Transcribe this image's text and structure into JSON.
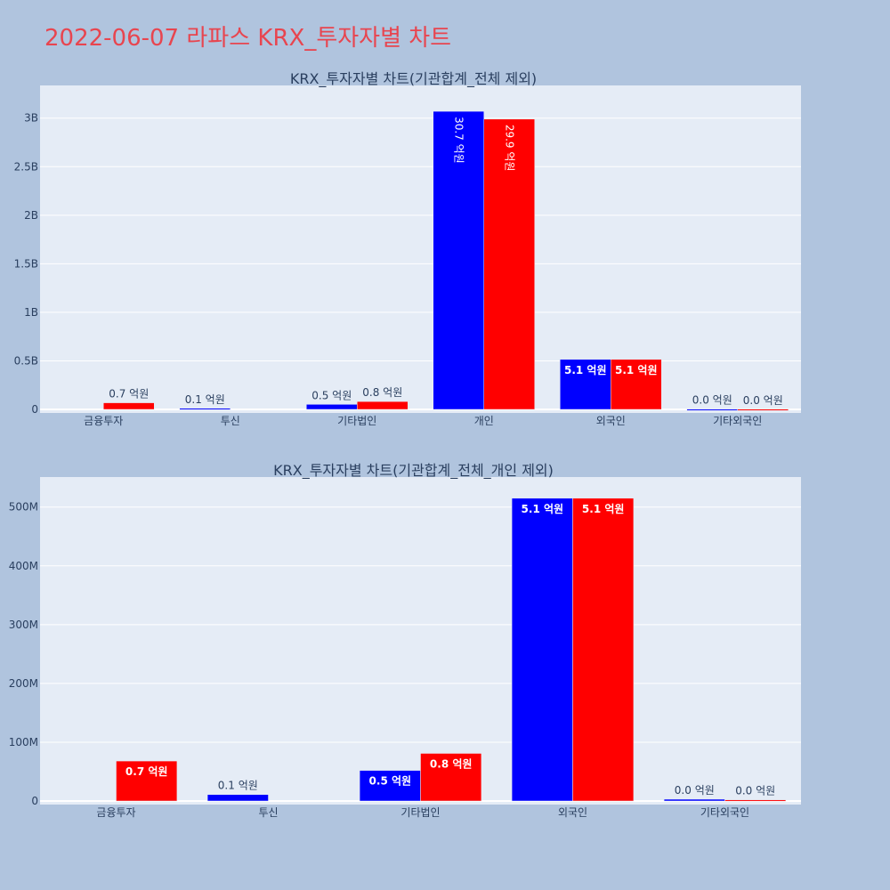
{
  "page": {
    "title": "2022-06-07 라파스 KRX_투자자별 차트"
  },
  "colors": {
    "background": "#b0c4de",
    "plot_bg": "#e5ecf6",
    "series_1": "#0000ff",
    "series_2": "#ff0000",
    "title": "#e8454f",
    "text": "#2a3f5f"
  },
  "chart_data": [
    {
      "type": "bar",
      "title": "KRX_투자자별 차트(기관합계_전체 제외)",
      "categories": [
        "금융투자",
        "투신",
        "기타법인",
        "개인",
        "외국인",
        "기타외국인"
      ],
      "series": [
        {
          "color": "#0000ff",
          "values": [
            0,
            11000000,
            52000000,
            3070000000,
            515000000,
            3000000
          ],
          "labels": [
            "",
            "0.1 억원",
            "0.5 억원",
            "30.7 억원",
            "5.1 억원",
            "0.0 억원"
          ]
        },
        {
          "color": "#ff0000",
          "values": [
            68000000,
            0,
            81000000,
            2990000000,
            515000000,
            2000000
          ],
          "labels": [
            "0.7 억원",
            "",
            "0.8 억원",
            "29.9 억원",
            "5.1 억원",
            "0.0 억원"
          ]
        }
      ],
      "ylim": [
        0,
        3300000000
      ],
      "yticks": [
        0,
        500000000,
        1000000000,
        1500000000,
        2000000000,
        2500000000,
        3000000000
      ],
      "ytick_labels": [
        "0",
        "0.5B",
        "1B",
        "1.5B",
        "2B",
        "2.5B",
        "3B"
      ],
      "grid": true
    },
    {
      "type": "bar",
      "title": "KRX_투자자별 차트(기관합계_전체_개인 제외)",
      "categories": [
        "금융투자",
        "투신",
        "기타법인",
        "외국인",
        "기타외국인"
      ],
      "series": [
        {
          "color": "#0000ff",
          "values": [
            0,
            11000000,
            52000000,
            515000000,
            3000000
          ],
          "labels": [
            "",
            "0.1 억원",
            "0.5 억원",
            "5.1 억원",
            "0.0 억원"
          ]
        },
        {
          "color": "#ff0000",
          "values": [
            68000000,
            0,
            81000000,
            515000000,
            2000000
          ],
          "labels": [
            "0.7 억원",
            "",
            "0.8 억원",
            "5.1 억원",
            "0.0 억원"
          ]
        }
      ],
      "ylim": [
        0,
        545000000
      ],
      "yticks": [
        0,
        100000000,
        200000000,
        300000000,
        400000000,
        500000000
      ],
      "ytick_labels": [
        "0",
        "100M",
        "200M",
        "300M",
        "400M",
        "500M"
      ],
      "grid": true
    }
  ]
}
